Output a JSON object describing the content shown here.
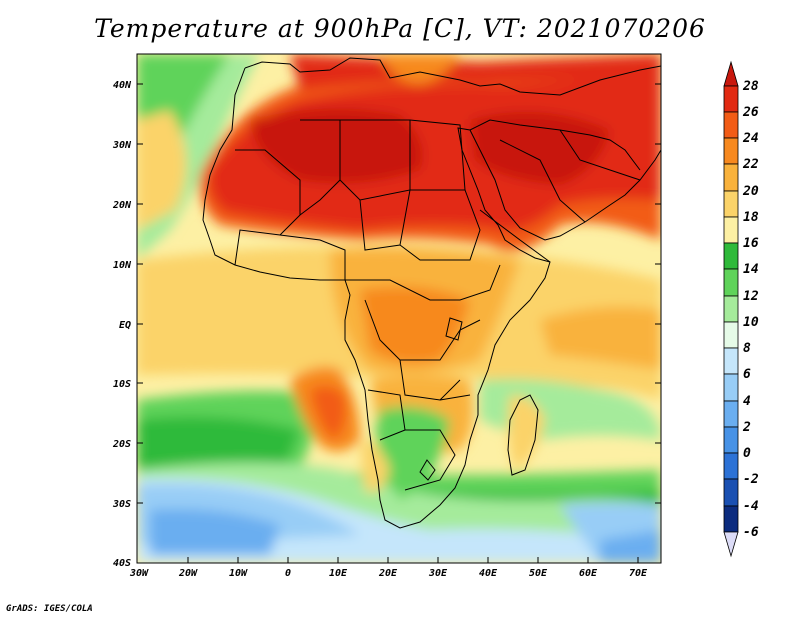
{
  "title": "Temperature at 900hPa [C], VT: 2021070206",
  "credit": "GrADS: IGES/COLA",
  "axes": {
    "lat_labels": [
      "40N",
      "30N",
      "20N",
      "10N",
      "EQ",
      "10S",
      "20S",
      "30S",
      "40S"
    ],
    "lon_labels": [
      "30W",
      "20W",
      "10W",
      "0",
      "10E",
      "20E",
      "30E",
      "40E",
      "50E",
      "60E",
      "70E"
    ]
  },
  "colorbar": {
    "ticks": [
      "28",
      "26",
      "24",
      "22",
      "20",
      "18",
      "16",
      "14",
      "12",
      "10",
      "8",
      "6",
      "4",
      "2",
      "0",
      "-2",
      "-4",
      "-6"
    ],
    "colors": {
      "above_28": "#c8180e",
      "26_28": "#e22a12",
      "24_26": "#f25c16",
      "22_24": "#f7891f",
      "20_22": "#f9b23c",
      "18_20": "#fbd369",
      "16_18": "#fdf0a4",
      "14_16": "#2fba3a",
      "12_14": "#5fd35a",
      "10_12": "#a5eb9b",
      "8_10": "#e6fbe8",
      "6_8": "#c5e6fb",
      "4_6": "#98cdf6",
      "2_4": "#6aaef0",
      "0_2": "#4792e6",
      "-2_0": "#2c72d6",
      "-4_-2": "#1a50b2",
      "-6_-4": "#0c2c7f",
      "below_-6": "#dcdcf7"
    }
  }
}
